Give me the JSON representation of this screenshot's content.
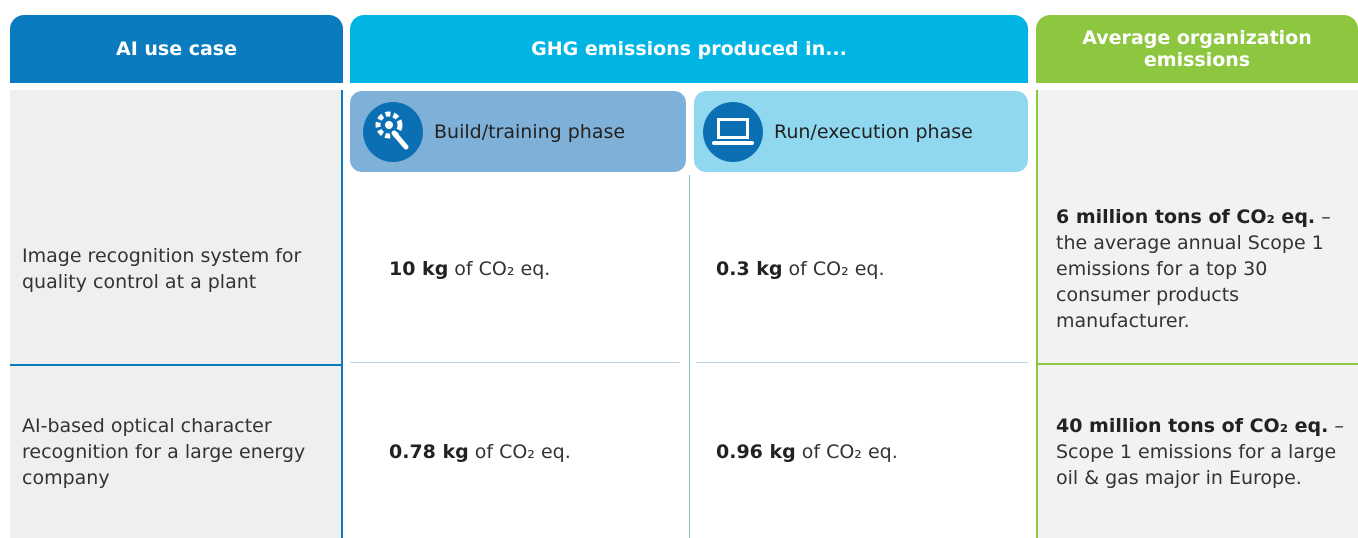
{
  "header": {
    "use_case": "AI use case",
    "emissions": "GHG emissions produced in...",
    "average": "Average organization emissions"
  },
  "phases": {
    "build": "Build/training phase",
    "run": "Run/execution phase"
  },
  "rows": [
    {
      "use_case": "Image recognition system for quality control at a plant",
      "build": {
        "bold": "10 kg",
        "text": "of CO₂ eq."
      },
      "run": {
        "bold": "0.3 kg",
        "text": "of CO₂ eq."
      },
      "average": {
        "bold": "6 million tons of CO₂ eq.",
        "text": "– the average annual Scope 1 emissions for a top 30 consumer products manufacturer."
      }
    },
    {
      "use_case": "AI-based optical character recognition for a large energy company",
      "build": {
        "bold": "0.78 kg",
        "text": "of CO₂ eq."
      },
      "run": {
        "bold": "0.96 kg",
        "text": "of CO₂ eq."
      },
      "average": {
        "bold": "40 million tons of CO₂ eq.",
        "text": "– Scope 1 emissions for a large oil & gas major in Europe."
      }
    }
  ]
}
